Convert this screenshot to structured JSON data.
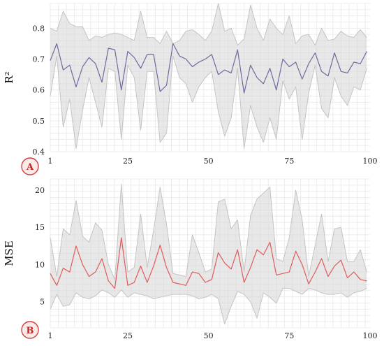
{
  "chart_data": [
    {
      "type": "line",
      "panel_label": "A",
      "ylabel": "R²",
      "xlim": [
        1,
        100
      ],
      "ylim": [
        0.4,
        0.88
      ],
      "xticks": [
        1,
        25,
        50,
        75,
        100
      ],
      "xtick_labels": [
        "1",
        "25",
        "50",
        "75",
        "100"
      ],
      "yticks": [
        0.4,
        0.5,
        0.6,
        0.7,
        0.8
      ],
      "ytick_labels": [
        "0.4",
        "0.5",
        "0.6",
        "0.7",
        "0.8"
      ],
      "grid": true,
      "line_color": "#6b6b9e",
      "band_color": "#d6d6d6",
      "x": [
        1,
        3,
        5,
        7,
        9,
        11,
        13,
        15,
        17,
        19,
        21,
        23,
        25,
        27,
        29,
        31,
        33,
        35,
        37,
        39,
        41,
        43,
        45,
        47,
        49,
        51,
        53,
        55,
        57,
        59,
        61,
        63,
        65,
        67,
        69,
        71,
        73,
        75,
        77,
        79,
        81,
        83,
        85,
        87,
        89,
        91,
        93,
        95,
        97,
        99
      ],
      "series": [
        {
          "role": "mean",
          "values": [
            0.695,
            0.75,
            0.665,
            0.68,
            0.61,
            0.675,
            0.705,
            0.685,
            0.625,
            0.735,
            0.73,
            0.6,
            0.725,
            0.705,
            0.67,
            0.715,
            0.715,
            0.595,
            0.615,
            0.75,
            0.71,
            0.7,
            0.675,
            0.69,
            0.7,
            0.715,
            0.65,
            0.665,
            0.655,
            0.73,
            0.59,
            0.68,
            0.64,
            0.62,
            0.67,
            0.6,
            0.7,
            0.675,
            0.69,
            0.635,
            0.685,
            0.72,
            0.66,
            0.645,
            0.72,
            0.66,
            0.655,
            0.69,
            0.685,
            0.725
          ]
        },
        {
          "role": "upper",
          "values": [
            0.8,
            0.79,
            0.855,
            0.815,
            0.805,
            0.805,
            0.76,
            0.775,
            0.77,
            0.78,
            0.785,
            0.78,
            0.77,
            0.76,
            0.855,
            0.77,
            0.77,
            0.75,
            0.79,
            0.75,
            0.76,
            0.79,
            0.795,
            0.78,
            0.76,
            0.79,
            0.88,
            0.79,
            0.8,
            0.745,
            0.765,
            0.875,
            0.8,
            0.76,
            0.83,
            0.8,
            0.78,
            0.84,
            0.75,
            0.775,
            0.78,
            0.745,
            0.8,
            0.76,
            0.765,
            0.79,
            0.775,
            0.77,
            0.795,
            0.77
          ]
        },
        {
          "role": "lower",
          "values": [
            0.58,
            0.71,
            0.48,
            0.57,
            0.41,
            0.535,
            0.64,
            0.56,
            0.48,
            0.67,
            0.66,
            0.44,
            0.68,
            0.64,
            0.47,
            0.66,
            0.66,
            0.43,
            0.46,
            0.71,
            0.64,
            0.62,
            0.56,
            0.61,
            0.64,
            0.66,
            0.53,
            0.45,
            0.51,
            0.67,
            0.41,
            0.55,
            0.48,
            0.43,
            0.51,
            0.44,
            0.63,
            0.57,
            0.61,
            0.44,
            0.59,
            0.68,
            0.54,
            0.51,
            0.64,
            0.58,
            0.55,
            0.61,
            0.6,
            0.67
          ]
        }
      ]
    },
    {
      "type": "line",
      "panel_label": "B",
      "ylabel": "MSE",
      "xlim": [
        1,
        100
      ],
      "ylim": [
        1.5,
        21.5
      ],
      "xticks": [
        1,
        25,
        50,
        75,
        100
      ],
      "xtick_labels": [
        "1",
        "25",
        "50",
        "75",
        "100"
      ],
      "yticks": [
        5,
        10,
        15,
        20
      ],
      "ytick_labels": [
        "5",
        "10",
        "15",
        "20"
      ],
      "grid": true,
      "line_color": "#e05a5a",
      "band_color": "#d6d6d6",
      "x": [
        1,
        3,
        5,
        7,
        9,
        11,
        13,
        15,
        17,
        19,
        21,
        23,
        25,
        27,
        29,
        31,
        33,
        35,
        37,
        39,
        41,
        43,
        45,
        47,
        49,
        51,
        53,
        55,
        57,
        59,
        61,
        63,
        65,
        67,
        69,
        71,
        73,
        75,
        77,
        79,
        81,
        83,
        85,
        87,
        89,
        91,
        93,
        95,
        97,
        99
      ],
      "series": [
        {
          "role": "mean",
          "values": [
            8.8,
            7.2,
            9.5,
            9.0,
            12.5,
            10.0,
            8.4,
            9.0,
            10.8,
            7.8,
            6.8,
            13.6,
            7.2,
            7.6,
            9.8,
            7.6,
            9.8,
            12.6,
            9.6,
            7.6,
            7.4,
            7.2,
            9.0,
            8.8,
            7.6,
            8.0,
            11.6,
            10.2,
            9.4,
            12.0,
            7.6,
            9.6,
            12.0,
            11.3,
            13.0,
            8.6,
            8.8,
            9.0,
            11.8,
            10.0,
            7.4,
            9.0,
            10.8,
            8.4,
            9.8,
            10.6,
            8.2,
            9.0,
            8.0,
            7.8
          ]
        },
        {
          "role": "upper",
          "values": [
            13.6,
            8.4,
            14.8,
            14.0,
            18.6,
            13.8,
            13.0,
            15.6,
            14.6,
            10.0,
            8.0,
            20.8,
            9.0,
            9.6,
            16.8,
            9.6,
            14.6,
            20.4,
            15.4,
            8.8,
            8.6,
            8.4,
            14.0,
            11.6,
            9.0,
            9.4,
            18.4,
            18.8,
            14.8,
            16.0,
            9.0,
            16.6,
            18.8,
            19.6,
            20.4,
            10.8,
            10.4,
            13.6,
            20.0,
            16.0,
            8.4,
            12.6,
            16.8,
            10.4,
            14.8,
            15.0,
            10.4,
            10.4,
            12.0,
            9.0
          ]
        },
        {
          "role": "lower",
          "values": [
            4.0,
            6.0,
            4.4,
            4.6,
            6.2,
            5.6,
            5.4,
            5.8,
            6.6,
            6.2,
            5.6,
            6.6,
            5.6,
            6.2,
            6.0,
            5.8,
            5.4,
            5.6,
            5.8,
            6.0,
            6.0,
            6.0,
            5.8,
            5.4,
            5.6,
            6.0,
            5.4,
            2.0,
            4.4,
            6.4,
            6.0,
            5.0,
            2.8,
            6.2,
            5.6,
            4.8,
            6.8,
            6.8,
            6.4,
            6.0,
            6.8,
            6.6,
            6.2,
            6.0,
            6.0,
            6.2,
            5.6,
            6.2,
            6.4,
            6.8
          ]
        }
      ]
    }
  ]
}
